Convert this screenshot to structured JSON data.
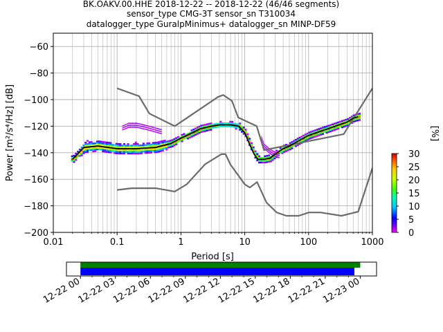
{
  "title_lines": [
    "BK.OAKV.00.HHE   2018-12-22 -- 2018-12-22  (46/46 segments)",
    "sensor_type CMG-3T sensor_sn T310034",
    "datalogger_type GuralpMinimus+ datalogger_sn MINP-DF59"
  ],
  "colors": {
    "noise_model": "#6b6b6b",
    "mean_line": "#000000",
    "grid": "#b0b0b0",
    "coverage_green": "#008000",
    "coverage_blue": "#0000ff"
  },
  "chart_data": [
    {
      "type": "heatmap",
      "title": "BK.OAKV.00.HHE   2018-12-22 -- 2018-12-22  (46/46 segments)",
      "xlabel": "Period [s]",
      "ylabel": "Power [m²/s⁴/Hz] [dB]",
      "xscale": "log",
      "xlim": [
        0.01,
        1000
      ],
      "ylim": [
        -200,
        -50
      ],
      "x_ticks": [
        0.01,
        0.1,
        1,
        10,
        100,
        1000
      ],
      "x_tick_labels": [
        "0.01",
        "0.1",
        "1",
        "10",
        "100",
        "1000"
      ],
      "y_ticks": [
        -200,
        -180,
        -160,
        -140,
        -120,
        -100,
        -80,
        -60
      ],
      "y_tick_labels": [
        "−200",
        "−180",
        "−160",
        "−140",
        "−120",
        "−100",
        "−80",
        "−60"
      ],
      "grid": true,
      "colorbar": {
        "label": "[%]",
        "range": [
          0,
          30
        ],
        "ticks": [
          0,
          5,
          10,
          15,
          20,
          25,
          30
        ],
        "tick_labels": [
          "0",
          "5",
          "10",
          "15",
          "20",
          "25",
          "30"
        ]
      },
      "series": [
        {
          "role": "mean",
          "period": [
            0.02,
            0.03,
            0.05,
            0.1,
            0.2,
            0.4,
            0.7,
            1,
            1.5,
            2,
            3,
            4,
            5,
            6,
            8,
            10,
            12,
            14,
            16,
            20,
            25,
            30,
            40,
            50,
            70,
            100,
            150,
            200,
            300,
            400,
            500,
            600
          ],
          "power": [
            -145,
            -136,
            -135,
            -137,
            -137,
            -136,
            -133,
            -129,
            -125,
            -122,
            -120,
            -119,
            -119,
            -119,
            -120,
            -125,
            -134,
            -141,
            -145,
            -145,
            -144,
            -141,
            -137,
            -135,
            -131,
            -127,
            -124,
            -122,
            -119,
            -117,
            -114,
            -113
          ]
        },
        {
          "role": "high-noise-model",
          "period": [
            0.1,
            0.22,
            0.32,
            0.8,
            3.8,
            4.6,
            6.3,
            7.9,
            15.4,
            20,
            354.8,
            10000
          ],
          "power": [
            -91.5,
            -97.4,
            -110.5,
            -120,
            -98,
            -96.5,
            -101,
            -113.5,
            -120,
            -138,
            -126,
            -91.5
          ]
        },
        {
          "role": "low-noise-model",
          "period": [
            0.1,
            0.17,
            0.4,
            0.8,
            1.24,
            2.4,
            4.3,
            5,
            6,
            10,
            12,
            15.6,
            21.9,
            31.6,
            45,
            70,
            101,
            154,
            328,
            600,
            10000
          ],
          "power": [
            -168,
            -166.7,
            -166.7,
            -169.2,
            -163.7,
            -148.6,
            -141.1,
            -141.1,
            -149,
            -163.8,
            -166.2,
            -162.1,
            -177.5,
            -185,
            -187.5,
            -187.5,
            -185,
            -185,
            -187.5,
            -184.4,
            -151.5
          ]
        }
      ],
      "outlier_band": {
        "period": [
          0.12,
          0.15,
          0.2,
          0.3,
          0.5
        ],
        "power": [
          -120,
          -118,
          -118,
          -120,
          -123
        ]
      },
      "outlier_band_2": {
        "period": [
          18,
          20,
          25,
          30,
          35
        ],
        "power": [
          -128,
          -134,
          -138,
          -140,
          -141
        ]
      }
    },
    {
      "type": "bar",
      "role": "data-coverage",
      "x_tick_labels": [
        "12-22 00",
        "12-22 03",
        "12-22 06",
        "12-22 09",
        "12-22 12",
        "12-22 15",
        "12-22 18",
        "12-22 21",
        "12-23 00"
      ],
      "xlim_hours": [
        -1.2,
        25.4
      ],
      "coverage": [
        {
          "row": "upper",
          "color": "#008000",
          "start_hour": 0,
          "end_hour": 24
        },
        {
          "row": "lower",
          "color": "#0000ff",
          "start_hour": 0,
          "end_hour": 23.5
        }
      ]
    }
  ]
}
